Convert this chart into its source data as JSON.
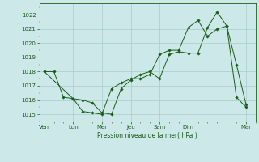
{
  "background_color": "#cce8e8",
  "grid_color": "#aacccc",
  "line_color": "#1a5c1a",
  "marker_color": "#1a5c1a",
  "xlabel": "Pression niveau de la mer( hPa )",
  "ylim": [
    1014.5,
    1022.8
  ],
  "yticks": [
    1015,
    1016,
    1017,
    1018,
    1019,
    1020,
    1021,
    1022
  ],
  "x_major_positions": [
    0,
    12,
    24,
    36,
    48,
    60,
    84
  ],
  "x_major_labels": [
    "Ven",
    "Lun",
    "Mer",
    "Jeu",
    "Sam",
    "Dim",
    "Mar"
  ],
  "xlim": [
    -2,
    88
  ],
  "line1_x": [
    0,
    4,
    8,
    12,
    16,
    20,
    24,
    28,
    32,
    36,
    40,
    44,
    48,
    52,
    56,
    60,
    64,
    68,
    72,
    76,
    80,
    84
  ],
  "line1_y": [
    1018.0,
    1018.0,
    1016.2,
    1016.1,
    1016.0,
    1015.8,
    1015.1,
    1015.0,
    1016.8,
    1017.4,
    1017.8,
    1018.0,
    1017.5,
    1019.2,
    1019.4,
    1019.3,
    1019.3,
    1021.1,
    1022.2,
    1021.2,
    1018.5,
    1015.7
  ],
  "line2_x": [
    0,
    12,
    16,
    20,
    24,
    28,
    32,
    36,
    40,
    44,
    48,
    52,
    56,
    60,
    64,
    68,
    72,
    76,
    80,
    84
  ],
  "line2_y": [
    1018.0,
    1016.1,
    1015.2,
    1015.1,
    1015.0,
    1016.8,
    1017.2,
    1017.5,
    1017.5,
    1017.8,
    1019.2,
    1019.5,
    1019.5,
    1021.1,
    1021.6,
    1020.5,
    1021.0,
    1021.2,
    1016.2,
    1015.5
  ]
}
